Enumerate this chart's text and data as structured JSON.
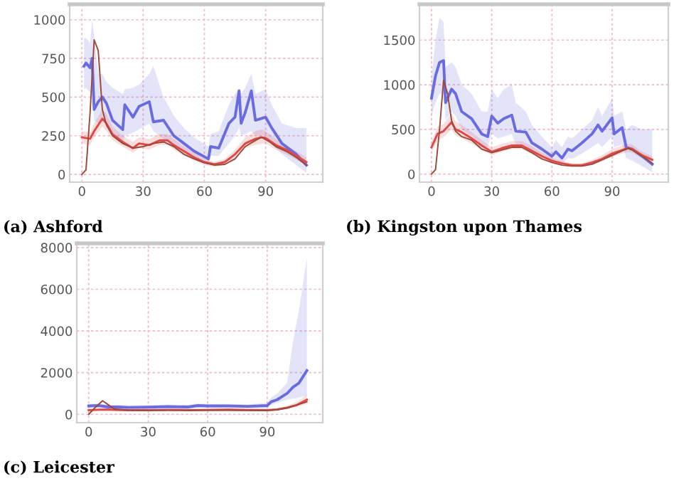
{
  "chart_data": [
    {
      "type": "line",
      "title": "(a) Ashford",
      "xlim": [
        -6,
        118
      ],
      "xticks": [
        0,
        30,
        60,
        90
      ],
      "ylim": [
        -50,
        1100
      ],
      "yticks": [
        0,
        250,
        500,
        750,
        1000
      ],
      "grid": true,
      "series": [
        {
          "color": "#6b6be0",
          "x": [
            1,
            2,
            4,
            5,
            6,
            8,
            10,
            12,
            15,
            20,
            21,
            25,
            28,
            33,
            35,
            40,
            45,
            50,
            55,
            62,
            63,
            67,
            72,
            75,
            77,
            78,
            80,
            83,
            85,
            90,
            93,
            98,
            105,
            110
          ],
          "values": [
            700,
            720,
            690,
            750,
            420,
            470,
            500,
            460,
            350,
            290,
            450,
            370,
            440,
            470,
            340,
            350,
            250,
            200,
            150,
            100,
            180,
            170,
            330,
            370,
            540,
            330,
            400,
            540,
            350,
            370,
            300,
            200,
            130,
            60
          ],
          "upper": [
            880,
            880,
            850,
            1000,
            900,
            650,
            650,
            600,
            560,
            520,
            550,
            560,
            580,
            650,
            700,
            500,
            380,
            300,
            240,
            180,
            260,
            280,
            450,
            520,
            560,
            520,
            560,
            650,
            520,
            550,
            450,
            330,
            300,
            300
          ],
          "lower": [
            550,
            560,
            530,
            500,
            350,
            330,
            360,
            330,
            260,
            200,
            250,
            270,
            290,
            330,
            280,
            230,
            180,
            150,
            110,
            80,
            120,
            120,
            200,
            250,
            300,
            250,
            260,
            280,
            250,
            250,
            200,
            130,
            60,
            10
          ]
        },
        {
          "color": "#e04848",
          "x": [
            0,
            4,
            6,
            10,
            12,
            15,
            20,
            25,
            28,
            33,
            38,
            42,
            45,
            50,
            55,
            60,
            65,
            70,
            75,
            80,
            85,
            88,
            90,
            95,
            100,
            105,
            110
          ],
          "values": [
            240,
            230,
            280,
            360,
            330,
            260,
            210,
            170,
            200,
            190,
            220,
            220,
            190,
            150,
            110,
            80,
            65,
            80,
            130,
            200,
            230,
            240,
            235,
            190,
            160,
            120,
            80
          ],
          "upper": [
            280,
            270,
            330,
            420,
            390,
            310,
            250,
            210,
            240,
            230,
            260,
            260,
            230,
            180,
            140,
            100,
            80,
            100,
            160,
            240,
            280,
            290,
            280,
            230,
            190,
            150,
            110
          ],
          "lower": [
            200,
            190,
            240,
            310,
            280,
            220,
            180,
            140,
            170,
            160,
            190,
            190,
            160,
            120,
            90,
            60,
            50,
            60,
            100,
            170,
            190,
            200,
            200,
            160,
            130,
            95,
            60
          ]
        },
        {
          "color": "#9a4a3a",
          "x": [
            0,
            2,
            4,
            6,
            8,
            10,
            12,
            15,
            20,
            25,
            30,
            35,
            40,
            45,
            50,
            55,
            60,
            65,
            70,
            75,
            80,
            85,
            88,
            92,
            95,
            100,
            105,
            110
          ],
          "values": [
            0,
            30,
            400,
            870,
            800,
            420,
            320,
            250,
            200,
            170,
            180,
            200,
            210,
            180,
            130,
            100,
            75,
            60,
            65,
            100,
            180,
            220,
            240,
            210,
            180,
            150,
            110,
            60
          ]
        }
      ]
    },
    {
      "type": "line",
      "title": "(b) Kingston upon Thames",
      "xlim": [
        -6,
        118
      ],
      "xticks": [
        0,
        30,
        60,
        90
      ],
      "ylim": [
        -90,
        1900
      ],
      "yticks": [
        0,
        500,
        1000,
        1500
      ],
      "grid": true,
      "series": [
        {
          "color": "#6b6be0",
          "x": [
            0,
            2,
            4,
            6,
            7,
            10,
            12,
            15,
            20,
            25,
            28,
            30,
            33,
            36,
            40,
            42,
            47,
            50,
            55,
            60,
            62,
            65,
            68,
            70,
            75,
            80,
            83,
            85,
            90,
            91,
            95,
            97,
            100,
            105,
            110
          ],
          "values": [
            850,
            1100,
            1250,
            1270,
            800,
            950,
            900,
            700,
            620,
            450,
            420,
            650,
            570,
            620,
            660,
            480,
            470,
            350,
            280,
            200,
            250,
            180,
            280,
            260,
            350,
            450,
            550,
            480,
            630,
            450,
            520,
            300,
            280,
            200,
            110
          ],
          "upper": [
            1100,
            1500,
            1750,
            1700,
            1200,
            1250,
            1200,
            1000,
            900,
            700,
            700,
            950,
            850,
            950,
            1000,
            800,
            700,
            550,
            420,
            300,
            380,
            300,
            420,
            400,
            500,
            600,
            750,
            650,
            850,
            650,
            700,
            500,
            550,
            500,
            500
          ],
          "lower": [
            650,
            800,
            900,
            900,
            600,
            700,
            650,
            500,
            430,
            320,
            300,
            450,
            400,
            420,
            450,
            330,
            320,
            240,
            190,
            130,
            160,
            110,
            180,
            170,
            230,
            300,
            350,
            300,
            420,
            300,
            330,
            180,
            150,
            90,
            20
          ]
        },
        {
          "color": "#e04848",
          "x": [
            0,
            3,
            6,
            10,
            12,
            15,
            20,
            25,
            30,
            35,
            40,
            45,
            50,
            55,
            60,
            65,
            70,
            75,
            80,
            85,
            90,
            95,
            98,
            100,
            105,
            110
          ],
          "values": [
            300,
            450,
            480,
            580,
            500,
            470,
            400,
            320,
            250,
            290,
            320,
            320,
            260,
            200,
            150,
            120,
            100,
            100,
            130,
            170,
            230,
            270,
            290,
            280,
            210,
            160
          ],
          "upper": [
            360,
            530,
            560,
            680,
            590,
            550,
            470,
            380,
            300,
            340,
            370,
            370,
            310,
            240,
            180,
            150,
            120,
            120,
            160,
            210,
            280,
            320,
            340,
            330,
            250,
            200
          ],
          "lower": [
            240,
            380,
            410,
            500,
            430,
            400,
            340,
            270,
            210,
            250,
            280,
            280,
            220,
            170,
            120,
            95,
            80,
            80,
            105,
            140,
            190,
            230,
            250,
            240,
            170,
            120
          ]
        },
        {
          "color": "#9a4a3a",
          "x": [
            0,
            2,
            4,
            6,
            8,
            10,
            12,
            15,
            20,
            25,
            30,
            35,
            40,
            45,
            50,
            55,
            60,
            65,
            70,
            75,
            80,
            85,
            90,
            95,
            98,
            100,
            105,
            110
          ],
          "values": [
            0,
            50,
            500,
            1050,
            900,
            600,
            480,
            420,
            380,
            280,
            240,
            270,
            300,
            300,
            240,
            170,
            130,
            100,
            90,
            90,
            110,
            160,
            210,
            260,
            290,
            270,
            200,
            120
          ]
        }
      ]
    },
    {
      "type": "line",
      "title": "(c) Leicester",
      "xlim": [
        -6,
        118
      ],
      "xticks": [
        0,
        30,
        60,
        90
      ],
      "ylim": [
        -400,
        8200
      ],
      "yticks": [
        0,
        2000,
        4000,
        6000,
        8000
      ],
      "grid": true,
      "series": [
        {
          "color": "#6b6be0",
          "x": [
            0,
            5,
            10,
            15,
            20,
            30,
            40,
            50,
            55,
            60,
            70,
            80,
            90,
            92,
            95,
            100,
            103,
            106,
            110
          ],
          "values": [
            400,
            420,
            350,
            350,
            330,
            340,
            370,
            350,
            420,
            400,
            400,
            380,
            420,
            600,
            700,
            1000,
            1300,
            1500,
            2100
          ],
          "upper": [
            500,
            520,
            450,
            450,
            430,
            440,
            470,
            450,
            520,
            500,
            500,
            480,
            550,
            800,
            1000,
            1500,
            3500,
            5000,
            7500
          ],
          "lower": [
            300,
            320,
            250,
            250,
            230,
            240,
            270,
            250,
            320,
            300,
            300,
            280,
            300,
            450,
            550,
            700,
            750,
            800,
            900
          ]
        },
        {
          "color": "#e04848",
          "x": [
            0,
            5,
            10,
            20,
            30,
            40,
            50,
            60,
            70,
            80,
            90,
            95,
            100,
            105,
            110
          ],
          "values": [
            200,
            220,
            220,
            200,
            200,
            210,
            200,
            210,
            220,
            210,
            200,
            230,
            320,
            450,
            700
          ],
          "upper": [
            250,
            270,
            270,
            250,
            250,
            260,
            250,
            260,
            270,
            260,
            250,
            290,
            400,
            600,
            950
          ],
          "lower": [
            150,
            170,
            170,
            150,
            150,
            160,
            150,
            160,
            170,
            160,
            150,
            180,
            250,
            350,
            500
          ]
        },
        {
          "color": "#9a4a3a",
          "x": [
            0,
            3,
            7,
            10,
            13,
            20,
            30,
            40,
            50,
            60,
            70,
            80,
            90,
            95,
            100,
            105,
            110
          ],
          "values": [
            0,
            300,
            650,
            450,
            250,
            200,
            190,
            200,
            190,
            200,
            200,
            190,
            180,
            220,
            300,
            450,
            600
          ]
        }
      ]
    }
  ]
}
